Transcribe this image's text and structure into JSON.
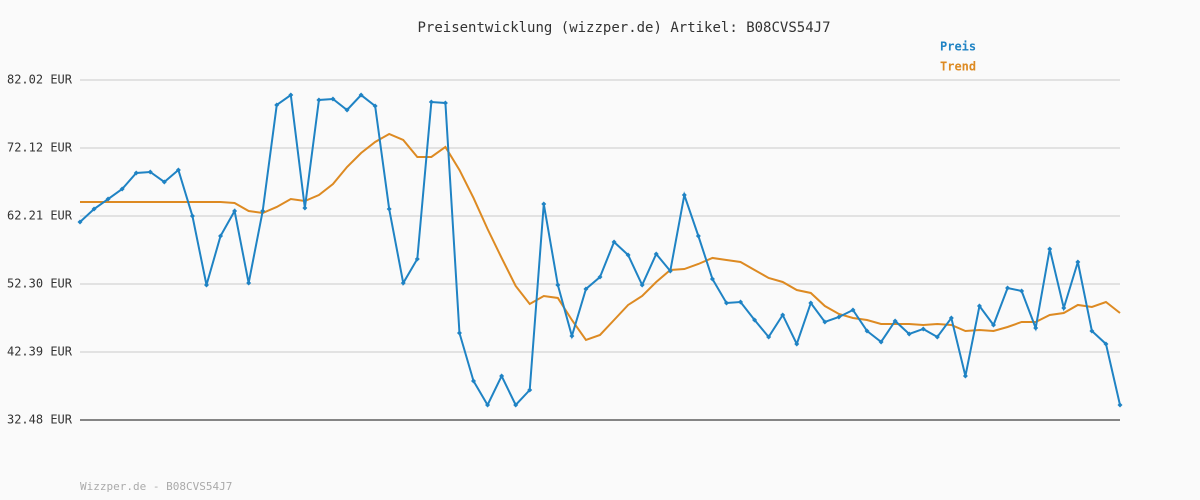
{
  "chart_data": {
    "type": "line",
    "title": "Preisentwicklung (wizzper.de) Artikel: B08CVS54J7",
    "footer": "Wizzper.de - B08CVS54J7",
    "ylim": [
      32.48,
      82.02
    ],
    "yticks": [
      {
        "value": 32.48,
        "label": "32.48 EUR"
      },
      {
        "value": 42.39,
        "label": "42.39 EUR"
      },
      {
        "value": 52.3,
        "label": "52.30 EUR"
      },
      {
        "value": 62.21,
        "label": "62.21 EUR"
      },
      {
        "value": 72.12,
        "label": "72.12 EUR"
      },
      {
        "value": 82.02,
        "label": "82.02 EUR"
      }
    ],
    "grid": true,
    "legend": "top-right",
    "series": [
      {
        "name": "Preis",
        "color": "#1f83c4",
        "markers": true,
        "values": [
          61.33,
          63.22,
          64.68,
          66.14,
          68.47,
          68.62,
          67.16,
          68.91,
          62.2,
          52.15,
          59.29,
          62.93,
          52.44,
          62.93,
          78.38,
          79.83,
          63.37,
          79.11,
          79.25,
          77.65,
          79.83,
          78.23,
          63.22,
          52.44,
          55.94,
          78.81,
          78.67,
          45.16,
          38.16,
          34.67,
          38.89,
          34.67,
          36.85,
          63.95,
          52.15,
          44.72,
          51.57,
          53.32,
          58.42,
          56.52,
          52.15,
          56.67,
          54.19,
          65.26,
          59.29,
          53.03,
          49.53,
          49.67,
          47.05,
          44.58,
          47.78,
          43.56,
          49.53,
          46.76,
          47.49,
          48.51,
          45.45,
          43.85,
          46.91,
          45.01,
          45.74,
          44.58,
          47.34,
          38.89,
          49.09,
          46.32,
          51.71,
          51.28,
          45.89,
          57.4,
          48.8,
          55.5,
          45.45,
          43.56,
          34.67
        ]
      },
      {
        "name": "Trend",
        "color": "#dd8a22",
        "markers": false,
        "values": [
          64.24,
          64.24,
          64.24,
          64.24,
          64.24,
          64.24,
          64.24,
          64.24,
          64.24,
          64.24,
          64.24,
          64.1,
          62.93,
          62.64,
          63.52,
          64.68,
          64.39,
          65.26,
          66.87,
          69.34,
          71.38,
          72.99,
          74.15,
          73.28,
          70.8,
          70.8,
          72.26,
          68.91,
          64.83,
          60.31,
          56.09,
          52.01,
          49.38,
          50.55,
          50.26,
          47.05,
          44.14,
          44.87,
          47.05,
          49.24,
          50.55,
          52.59,
          54.34,
          54.48,
          55.21,
          56.09,
          55.79,
          55.5,
          54.34,
          53.17,
          52.59,
          51.42,
          50.99,
          49.09,
          47.93,
          47.34,
          47.05,
          46.47,
          46.47,
          46.47,
          46.32,
          46.47,
          46.32,
          45.45,
          45.59,
          45.45,
          46.03,
          46.76,
          46.76,
          47.78,
          48.07,
          49.24,
          48.95,
          49.67,
          48.07
        ]
      }
    ]
  }
}
